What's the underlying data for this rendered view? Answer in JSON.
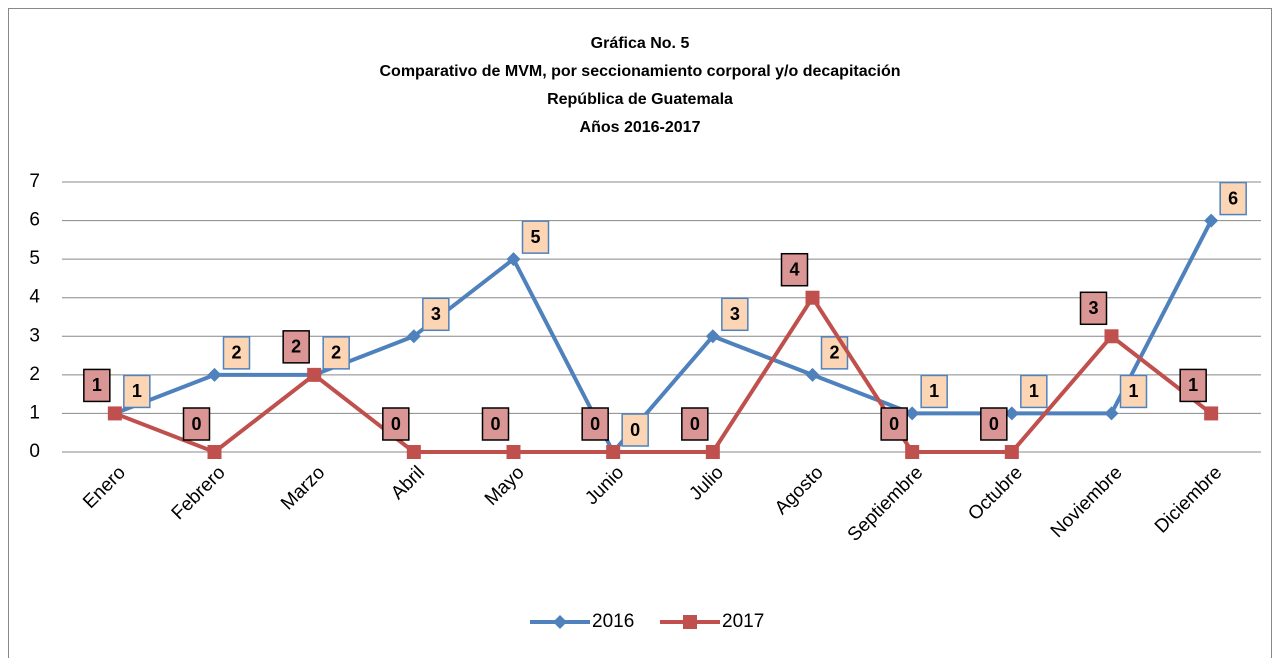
{
  "chart_data": {
    "type": "line",
    "title": [
      "Gráfica No. 5",
      "Comparativo de  MVM, por seccionamiento corporal y/o decapitación",
      "República de Guatemala",
      "Años 2016-2017"
    ],
    "categories": [
      "Enero",
      "Febrero",
      "Marzo",
      "Abril",
      "Mayo",
      "Junio",
      "Julio",
      "Agosto",
      "Septiembre",
      "Octubre",
      "Noviembre",
      "Diciembre"
    ],
    "series": [
      {
        "name": "2016",
        "color": "#4f81bd",
        "values": [
          1,
          2,
          2,
          3,
          5,
          0,
          3,
          2,
          1,
          1,
          1,
          6
        ]
      },
      {
        "name": "2017",
        "color": "#c0504d",
        "values": [
          1,
          0,
          2,
          0,
          0,
          0,
          0,
          4,
          0,
          0,
          3,
          1
        ]
      }
    ],
    "ylim": [
      0,
      7
    ],
    "yticks": [
      0,
      1,
      2,
      3,
      4,
      5,
      6,
      7
    ],
    "grid": true,
    "legend": "bottom"
  }
}
